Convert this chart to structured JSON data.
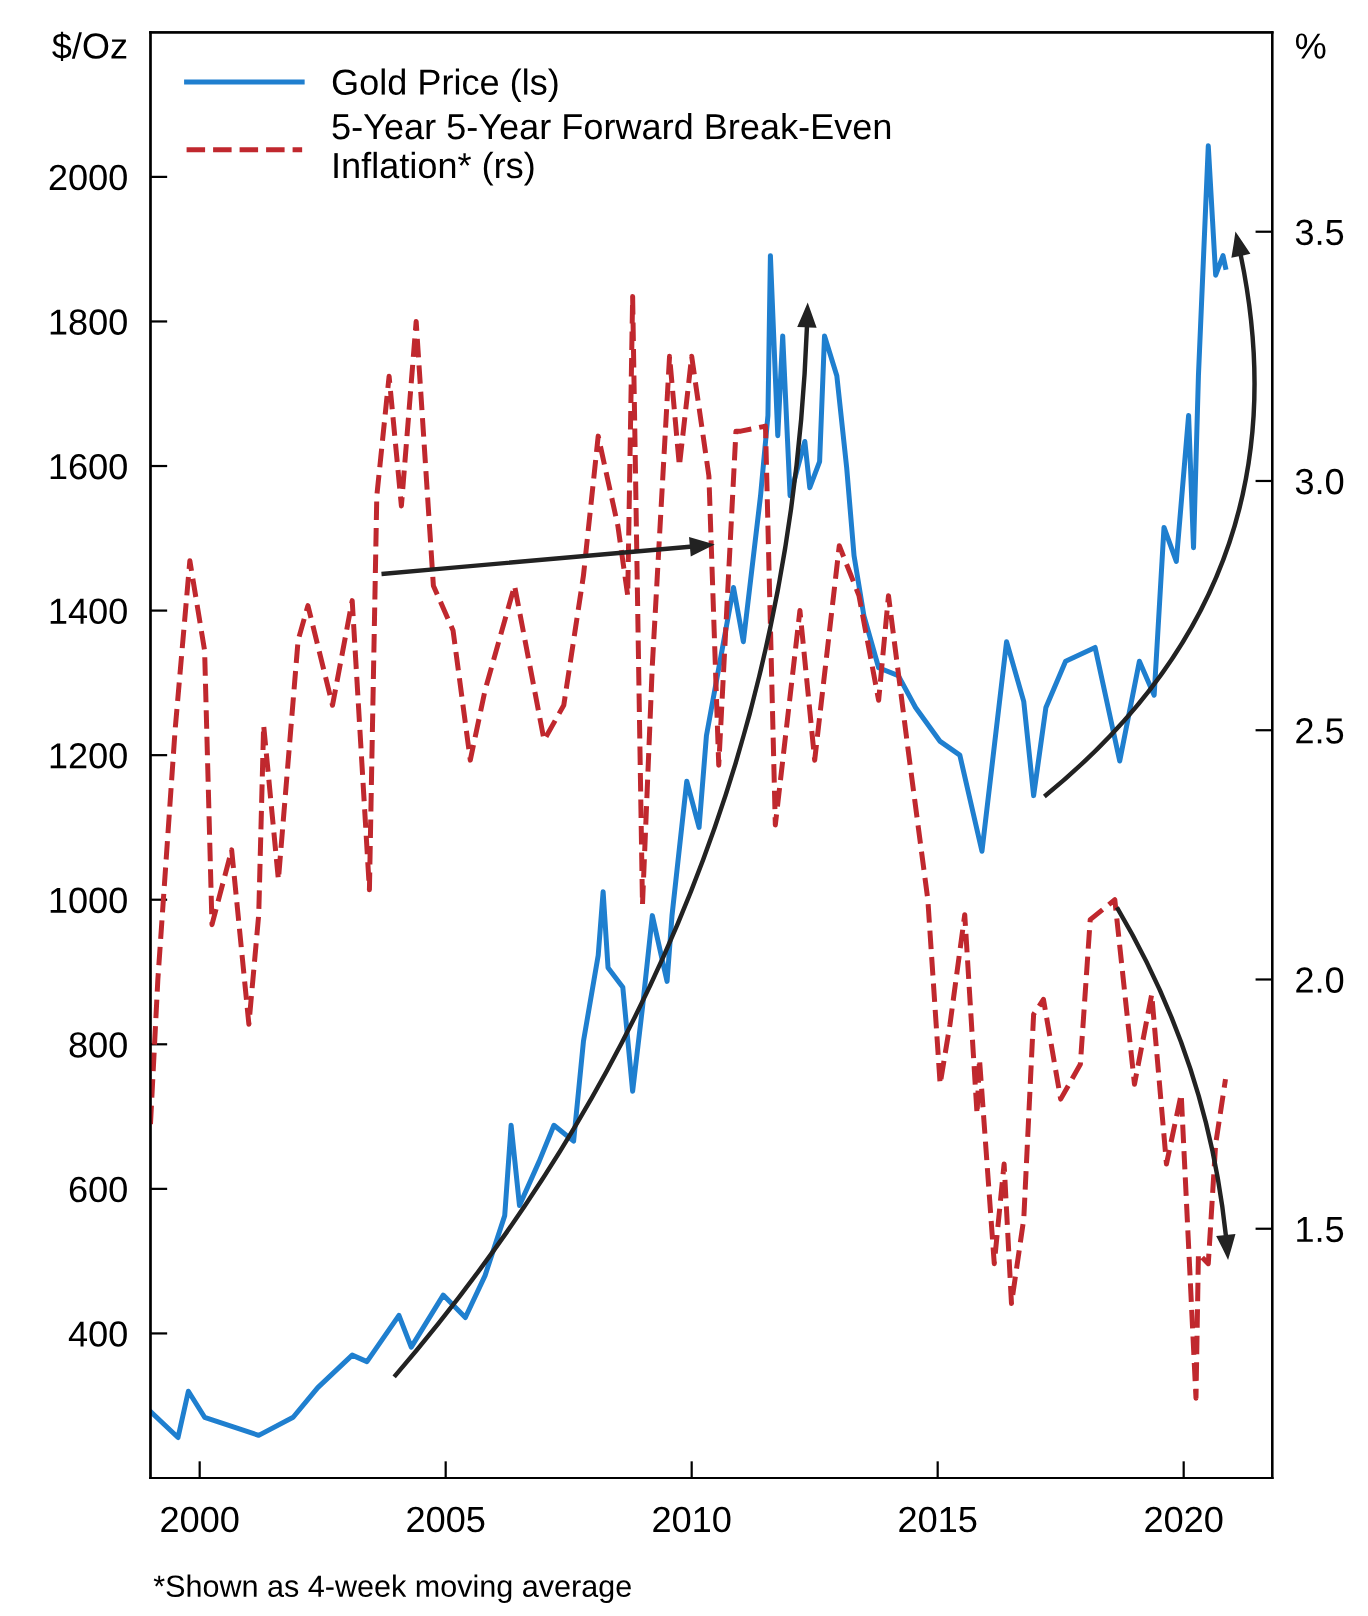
{
  "chart_data": {
    "type": "line",
    "xlim": [
      1999,
      2021.8
    ],
    "xticks": [
      2000,
      2005,
      2010,
      2015,
      2020
    ],
    "ylim": [
      200,
      2200
    ],
    "yticks": [
      400,
      600,
      800,
      1000,
      1200,
      1400,
      1600,
      1800,
      2000
    ],
    "y2lim": [
      1.0,
      3.9
    ],
    "y2ticks": [
      {
        "value": 1.5,
        "label": "1.5"
      },
      {
        "value": 2.0,
        "label": "2.0"
      },
      {
        "value": 2.5,
        "label": "2.5"
      },
      {
        "value": 3.0,
        "label": "3.0"
      },
      {
        "value": 3.5,
        "label": "3.5"
      }
    ],
    "ylabel": "$/Oz",
    "y2label": "%",
    "legend": "top left",
    "grid": false,
    "annotations": [
      "*Shown as 4-week moving average"
    ],
    "series": [
      {
        "name": "Gold Price (ls)",
        "color": "#1f7fcf",
        "line_style": "solid",
        "x": [
          1999.0,
          1999.56,
          1999.77,
          2000.1,
          2001.2,
          2001.9,
          2002.4,
          2003.1,
          2003.4,
          2004.05,
          2004.3,
          2004.95,
          2005.4,
          2005.8,
          2006.2,
          2006.33,
          2006.5,
          2006.9,
          2007.2,
          2007.6,
          2007.8,
          2008.1,
          2008.2,
          2008.3,
          2008.6,
          2008.8,
          2009.0,
          2009.2,
          2009.5,
          2009.6,
          2009.9,
          2010.15,
          2010.3,
          2010.85,
          2011.05,
          2011.4,
          2011.55,
          2011.6,
          2011.75,
          2011.85,
          2012.0,
          2012.3,
          2012.4,
          2012.6,
          2012.7,
          2012.95,
          2013.15,
          2013.3,
          2013.5,
          2013.8,
          2014.2,
          2014.55,
          2015.05,
          2015.45,
          2015.9,
          2016.4,
          2016.75,
          2016.95,
          2017.2,
          2017.6,
          2018.2,
          2018.7,
          2019.1,
          2019.4,
          2019.6,
          2019.85,
          2020.1,
          2020.2,
          2020.3,
          2020.5,
          2020.65,
          2020.8,
          2020.85
        ],
        "values": [
          292,
          256,
          320,
          284,
          259,
          284,
          325,
          370,
          361,
          425,
          381,
          453,
          422,
          480,
          563,
          688,
          577,
          638,
          688,
          666,
          804,
          923,
          1011,
          906,
          879,
          735,
          851,
          978,
          887,
          978,
          1164,
          1100,
          1227,
          1432,
          1357,
          1559,
          1670,
          1891,
          1642,
          1780,
          1559,
          1634,
          1570,
          1606,
          1780,
          1725,
          1598,
          1476,
          1393,
          1321,
          1310,
          1266,
          1219,
          1200,
          1067,
          1357,
          1274,
          1144,
          1266,
          1330,
          1349,
          1192,
          1330,
          1283,
          1515,
          1468,
          1670,
          1487,
          1725,
          2043,
          1864,
          1891,
          1875
        ]
      },
      {
        "name": "5-Year 5-Year Forward Break-Even\nInflation* (rs)",
        "color": "#c0282e",
        "line_style": "dashed",
        "axis": "y2",
        "x": [
          1999.0,
          1999.15,
          1999.5,
          1999.8,
          2000.1,
          2000.25,
          2000.65,
          2001.0,
          2001.2,
          2001.3,
          2001.6,
          2002.0,
          2002.2,
          2002.7,
          2003.1,
          2003.45,
          2003.6,
          2003.85,
          2004.1,
          2004.4,
          2004.75,
          2005.15,
          2005.5,
          2005.8,
          2006.4,
          2007.0,
          2007.4,
          2007.8,
          2008.1,
          2008.5,
          2008.7,
          2008.8,
          2009.0,
          2009.2,
          2009.55,
          2009.75,
          2010.0,
          2010.35,
          2010.55,
          2010.9,
          2011.0,
          2011.5,
          2011.7,
          2012.2,
          2012.5,
          2013.0,
          2013.4,
          2013.8,
          2014.0,
          2014.4,
          2014.8,
          2015.05,
          2015.25,
          2015.55,
          2015.8,
          2015.85,
          2016.15,
          2016.35,
          2016.5,
          2016.75,
          2016.95,
          2017.15,
          2017.5,
          2017.9,
          2018.1,
          2018.6,
          2019.0,
          2019.35,
          2019.65,
          2019.95,
          2020.25,
          2020.3,
          2020.5,
          2020.65,
          2020.85
        ],
        "values": [
          1.71,
          2.0,
          2.5,
          2.84,
          2.66,
          2.11,
          2.26,
          1.91,
          2.13,
          2.51,
          2.2,
          2.68,
          2.75,
          2.55,
          2.76,
          2.18,
          2.97,
          3.21,
          2.95,
          3.32,
          2.79,
          2.7,
          2.44,
          2.58,
          2.79,
          2.48,
          2.55,
          2.81,
          3.09,
          2.91,
          2.77,
          3.37,
          2.15,
          2.63,
          3.25,
          3.03,
          3.25,
          3.01,
          2.43,
          3.1,
          3.1,
          3.11,
          2.31,
          2.74,
          2.44,
          2.87,
          2.77,
          2.56,
          2.77,
          2.46,
          2.16,
          1.79,
          1.91,
          2.13,
          1.73,
          1.84,
          1.43,
          1.63,
          1.35,
          1.52,
          1.93,
          1.96,
          1.76,
          1.83,
          2.12,
          2.16,
          1.79,
          1.97,
          1.63,
          1.77,
          1.16,
          1.45,
          1.43,
          1.67,
          1.8
        ]
      }
    ]
  }
}
